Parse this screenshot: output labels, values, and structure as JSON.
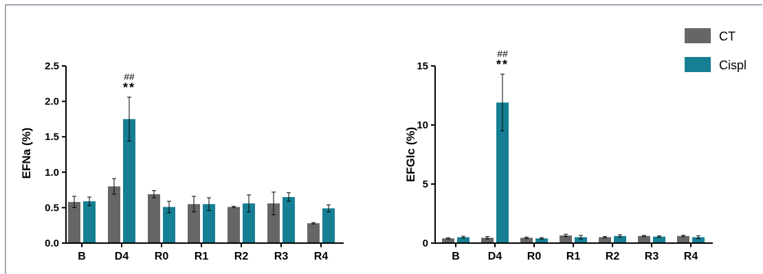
{
  "colors": {
    "CT": "#666666",
    "Cispl": "#167f93",
    "axis": "#000000",
    "border": "#7f8c99"
  },
  "legend": [
    {
      "name": "CT",
      "color": "#666666"
    },
    {
      "name": "Cispl",
      "color": "#167f93"
    }
  ],
  "chart_data": [
    {
      "type": "bar",
      "categories": [
        "B",
        "D4",
        "R0",
        "R1",
        "R2",
        "R3",
        "R4"
      ],
      "ylabel": "EFNa (%)",
      "xlabel": "",
      "ylim": [
        0,
        2.5
      ],
      "yticks": [
        "0.0",
        "0.5",
        "1.0",
        "1.5",
        "2.0",
        "2.5"
      ],
      "series": [
        {
          "name": "CT",
          "values": [
            0.58,
            0.8,
            0.69,
            0.55,
            0.51,
            0.56,
            0.28
          ],
          "errors": [
            0.08,
            0.11,
            0.05,
            0.11,
            0.01,
            0.16,
            0.01
          ]
        },
        {
          "name": "Cispl",
          "values": [
            0.59,
            1.75,
            0.51,
            0.55,
            0.56,
            0.65,
            0.49
          ],
          "errors": [
            0.06,
            0.31,
            0.08,
            0.09,
            0.12,
            0.06,
            0.05
          ]
        }
      ],
      "annotations": [
        {
          "category": "D4",
          "series": "Cispl",
          "lines": [
            "##",
            "**"
          ]
        }
      ]
    },
    {
      "type": "bar",
      "categories": [
        "B",
        "D4",
        "R0",
        "R1",
        "R2",
        "R3",
        "R4"
      ],
      "ylabel": "EFGlc (%)",
      "xlabel": "",
      "ylim": [
        0,
        15
      ],
      "yticks": [
        "0",
        "5",
        "10",
        "15"
      ],
      "series": [
        {
          "name": "CT",
          "values": [
            0.4,
            0.45,
            0.45,
            0.65,
            0.5,
            0.6,
            0.6
          ],
          "errors": [
            0.05,
            0.1,
            0.06,
            0.1,
            0.05,
            0.05,
            0.06
          ]
        },
        {
          "name": "Cispl",
          "values": [
            0.5,
            11.9,
            0.4,
            0.5,
            0.6,
            0.55,
            0.5
          ],
          "errors": [
            0.08,
            2.4,
            0.06,
            0.15,
            0.1,
            0.06,
            0.12
          ]
        }
      ],
      "annotations": [
        {
          "category": "D4",
          "series": "Cispl",
          "lines": [
            "##",
            "**"
          ]
        }
      ]
    }
  ]
}
